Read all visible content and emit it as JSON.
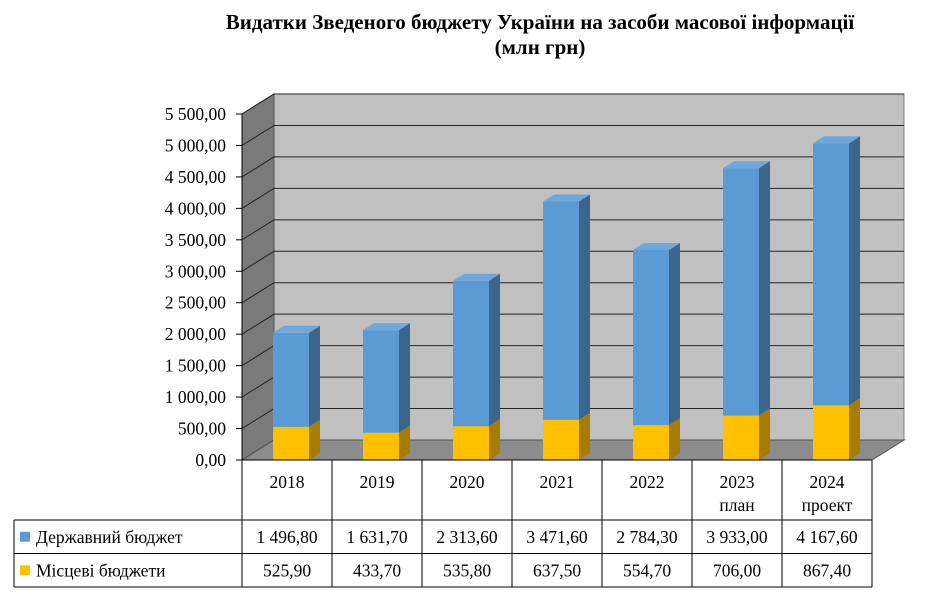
{
  "chart_data": {
    "type": "bar",
    "stacked": true,
    "title_line1": "Видатки Зведеного бюджету України на засоби масової інформації",
    "title_line2": "(млн грн)",
    "categories": [
      {
        "line1": "2018",
        "line2": ""
      },
      {
        "line1": "2019",
        "line2": ""
      },
      {
        "line1": "2020",
        "line2": ""
      },
      {
        "line1": "2021",
        "line2": ""
      },
      {
        "line1": "2022",
        "line2": ""
      },
      {
        "line1": "2023",
        "line2": "план"
      },
      {
        "line1": "2024",
        "line2": "проект"
      }
    ],
    "series": [
      {
        "name": "Місцеві бюджети",
        "color": "#ffc000",
        "values": [
          525.9,
          433.7,
          535.8,
          637.5,
          554.7,
          706.0,
          867.4
        ],
        "labels": [
          "525,90",
          "433,70",
          "535,80",
          "637,50",
          "554,70",
          "706,00",
          "867,40"
        ]
      },
      {
        "name": "Державний бюджет",
        "color": "#5b9bd5",
        "values": [
          1496.8,
          1631.7,
          2313.6,
          3471.6,
          2784.3,
          3933.0,
          4167.6
        ],
        "labels": [
          "1 496,80",
          "1 631,70",
          "2 313,60",
          "3 471,60",
          "2 784,30",
          "3 933,00",
          "4 167,60"
        ]
      }
    ],
    "table_order": [
      1,
      0
    ],
    "yticks": [
      0,
      500,
      1000,
      1500,
      2000,
      2500,
      3000,
      3500,
      4000,
      4500,
      5000,
      5500
    ],
    "ytick_labels": [
      "0,00",
      "500,00",
      "1 000,00",
      "1 500,00",
      "2 000,00",
      "2 500,00",
      "3 000,00",
      "3 500,00",
      "4 000,00",
      "4 500,00",
      "5 000,00",
      "5 500,00"
    ],
    "ylim": [
      0,
      5500
    ],
    "grid": true,
    "legend": "data-table"
  }
}
